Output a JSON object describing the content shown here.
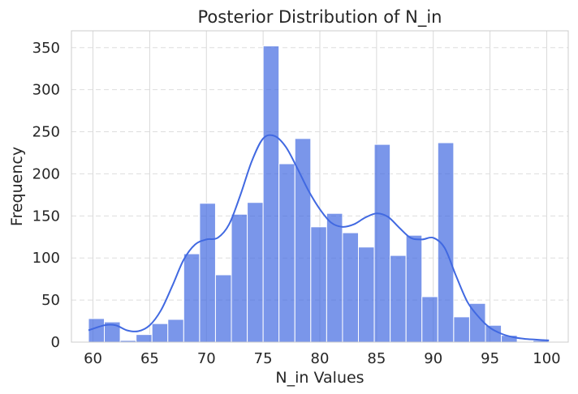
{
  "chart_data": {
    "type": "bar",
    "title": "Posterior Distribution of N_in",
    "xlabel": "N_in Values",
    "ylabel": "Frequency",
    "xlim": [
      58.1,
      101.9
    ],
    "ylim": [
      0,
      370
    ],
    "xticks": [
      60,
      65,
      70,
      75,
      80,
      85,
      90,
      95,
      100
    ],
    "yticks": [
      0,
      50,
      100,
      150,
      200,
      250,
      300,
      350
    ],
    "grid": true,
    "bar_color": "#4169e1",
    "bar_opacity": 0.7,
    "kde_color": "#4169e1",
    "bins": [
      {
        "x0": 59.6,
        "x1": 61.0,
        "count": 28
      },
      {
        "x0": 61.0,
        "x1": 62.4,
        "count": 24
      },
      {
        "x0": 62.4,
        "x1": 63.8,
        "count": 2
      },
      {
        "x0": 63.8,
        "x1": 65.2,
        "count": 9
      },
      {
        "x0": 65.2,
        "x1": 66.6,
        "count": 22
      },
      {
        "x0": 66.6,
        "x1": 68.0,
        "count": 27
      },
      {
        "x0": 68.0,
        "x1": 69.4,
        "count": 105
      },
      {
        "x0": 69.4,
        "x1": 70.8,
        "count": 165
      },
      {
        "x0": 70.8,
        "x1": 72.2,
        "count": 80
      },
      {
        "x0": 72.2,
        "x1": 73.6,
        "count": 152
      },
      {
        "x0": 73.6,
        "x1": 75.0,
        "count": 166
      },
      {
        "x0": 75.0,
        "x1": 76.4,
        "count": 352
      },
      {
        "x0": 76.4,
        "x1": 77.8,
        "count": 212
      },
      {
        "x0": 77.8,
        "x1": 79.2,
        "count": 242
      },
      {
        "x0": 79.2,
        "x1": 80.6,
        "count": 137
      },
      {
        "x0": 80.6,
        "x1": 82.0,
        "count": 153
      },
      {
        "x0": 82.0,
        "x1": 83.4,
        "count": 130
      },
      {
        "x0": 83.4,
        "x1": 84.8,
        "count": 113
      },
      {
        "x0": 84.8,
        "x1": 86.2,
        "count": 235
      },
      {
        "x0": 86.2,
        "x1": 87.6,
        "count": 103
      },
      {
        "x0": 87.6,
        "x1": 89.0,
        "count": 127
      },
      {
        "x0": 89.0,
        "x1": 90.4,
        "count": 54
      },
      {
        "x0": 90.4,
        "x1": 91.8,
        "count": 237
      },
      {
        "x0": 91.8,
        "x1": 93.2,
        "count": 30
      },
      {
        "x0": 93.2,
        "x1": 94.6,
        "count": 46
      },
      {
        "x0": 94.6,
        "x1": 96.0,
        "count": 20
      },
      {
        "x0": 96.0,
        "x1": 97.4,
        "count": 8
      },
      {
        "x0": 97.4,
        "x1": 98.8,
        "count": 0
      },
      {
        "x0": 98.8,
        "x1": 100.2,
        "count": 2
      }
    ],
    "kde": {
      "x": [
        59.6,
        61,
        62,
        63,
        64,
        65,
        66,
        67,
        68,
        69,
        70,
        71,
        72,
        73,
        74,
        75,
        76,
        77,
        78,
        79,
        80,
        81,
        82,
        83,
        84,
        85,
        86,
        87,
        88,
        89,
        90,
        91,
        92,
        93,
        94,
        95,
        96,
        97,
        98,
        99,
        100.2
      ],
      "y": [
        14,
        20,
        20,
        14,
        13,
        20,
        38,
        67,
        98,
        116,
        122,
        124,
        140,
        175,
        215,
        242,
        245,
        232,
        207,
        180,
        158,
        142,
        137,
        140,
        148,
        153,
        149,
        136,
        124,
        122,
        124,
        112,
        79,
        48,
        30,
        17,
        10,
        6,
        4,
        3,
        2
      ]
    }
  }
}
